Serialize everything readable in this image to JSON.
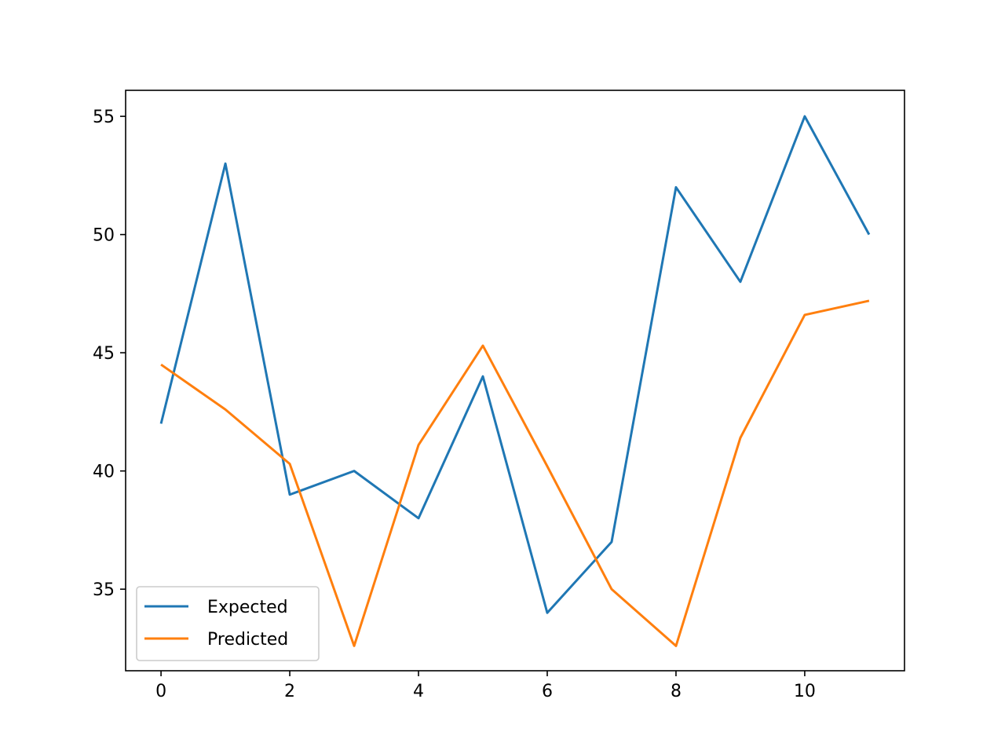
{
  "chart_data": {
    "type": "line",
    "title": "",
    "xlabel": "",
    "ylabel": "",
    "x": [
      0,
      1,
      2,
      3,
      4,
      5,
      6,
      7,
      8,
      9,
      10,
      11
    ],
    "xlim": [
      -0.55,
      11.55
    ],
    "ylim": [
      31.55,
      56.1
    ],
    "xticks": [
      0,
      2,
      4,
      6,
      8,
      10
    ],
    "xtick_labels": [
      "0",
      "2",
      "4",
      "6",
      "8",
      "10"
    ],
    "yticks": [
      35,
      40,
      45,
      50,
      55
    ],
    "ytick_labels": [
      "35",
      "40",
      "45",
      "50",
      "55"
    ],
    "grid": false,
    "legend_position": "lower-left",
    "series": [
      {
        "name": "Expected",
        "color": "#1f77b4",
        "values": [
          42,
          53,
          39,
          40,
          38,
          44,
          34,
          37,
          52,
          48,
          55,
          50
        ]
      },
      {
        "name": "Predicted",
        "color": "#ff7f0e",
        "values": [
          44.5,
          42.6,
          40.3,
          32.6,
          41.1,
          45.3,
          40.2,
          35.0,
          32.6,
          41.4,
          46.6,
          47.2
        ]
      }
    ]
  }
}
